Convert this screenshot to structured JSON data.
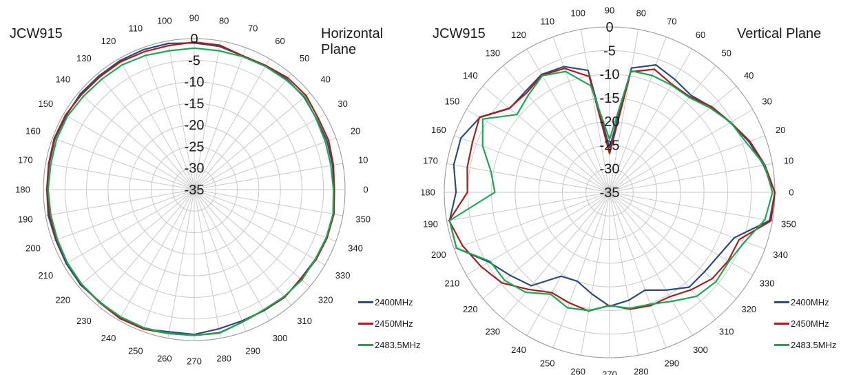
{
  "chart_data": [
    {
      "type": "polar-line",
      "model": "JCW915",
      "title": "Horizontal Plane",
      "radial_range": [
        -35,
        0
      ],
      "radial_ticks": [
        0,
        -5,
        -10,
        -15,
        -20,
        -25,
        -30,
        -35
      ],
      "radial_tick_labels": [
        "0",
        "-5",
        "-10",
        "-15",
        "-20",
        "-25",
        "-30",
        "-35"
      ],
      "angle_step": 10,
      "angle_tick_labels": [
        "0",
        "10",
        "20",
        "30",
        "40",
        "50",
        "60",
        "70",
        "80",
        "90",
        "100",
        "110",
        "120",
        "130",
        "140",
        "150",
        "160",
        "170",
        "180",
        "190",
        "200",
        "210",
        "220",
        "230",
        "240",
        "250",
        "260",
        "270",
        "280",
        "290",
        "300",
        "310",
        "320",
        "330",
        "340",
        "350"
      ],
      "legend_position": "bottom-right",
      "grid": true,
      "series": [
        {
          "name": "2400MHz",
          "color": "#2e4a7d",
          "values": [
            -2.5,
            -2.4,
            -2.2,
            -2.2,
            -1.7,
            -1.6,
            -1.8,
            -2.0,
            -1.3,
            -1.0,
            -0.6,
            -0.5,
            -0.5,
            -0.6,
            -0.5,
            -0.7,
            -0.6,
            -0.8,
            -0.8,
            -0.6,
            -0.8,
            -0.7,
            -0.6,
            -1.0,
            -0.6,
            -0.6,
            -1.5,
            -1.4,
            -2.2,
            -2.6,
            -2.6,
            -2.4,
            -2.8,
            -2.6,
            -2.3,
            -2.1
          ]
        },
        {
          "name": "2450MHz",
          "color": "#a91d1d",
          "values": [
            -2.5,
            -2.2,
            -1.8,
            -1.8,
            -1.1,
            -1.2,
            -1.8,
            -2.0,
            -1.0,
            -0.8,
            -1.1,
            -1.0,
            -0.8,
            -0.9,
            -0.8,
            -0.5,
            -0.4,
            -0.7,
            -0.8,
            -0.9,
            -1.0,
            -1.0,
            -0.8,
            -0.8,
            -0.5,
            -0.6,
            -1.1,
            -1.2,
            -1.3,
            -2.3,
            -2.7,
            -2.4,
            -2.7,
            -2.4,
            -2.2,
            -2.1
          ]
        },
        {
          "name": "2483.5MHz",
          "color": "#1aa855",
          "values": [
            -2.7,
            -2.8,
            -2.6,
            -2.3,
            -1.5,
            -1.8,
            -2.0,
            -2.2,
            -2.3,
            -2.2,
            -2.3,
            -1.9,
            -1.6,
            -1.6,
            -1.4,
            -1.0,
            -1.0,
            -1.2,
            -1.1,
            -1.2,
            -1.2,
            -1.0,
            -0.9,
            -0.9,
            -0.9,
            -0.9,
            -1.1,
            -1.2,
            -1.2,
            -2.3,
            -2.8,
            -2.6,
            -2.4,
            -2.6,
            -2.4,
            -2.3
          ]
        }
      ]
    },
    {
      "type": "polar-line",
      "model": "JCW915",
      "title": "Vertical Plane",
      "radial_range": [
        -35,
        0
      ],
      "radial_ticks": [
        0,
        -5,
        -10,
        -15,
        -20,
        -25,
        -30,
        -35
      ],
      "radial_tick_labels": [
        "0",
        "-5",
        "-10",
        "-15",
        "-20",
        "-25",
        "-30",
        "-35"
      ],
      "angle_step": 10,
      "angle_tick_labels": [
        "0",
        "10",
        "20",
        "30",
        "40",
        "50",
        "60",
        "70",
        "80",
        "90",
        "100",
        "110",
        "120",
        "130",
        "140",
        "150",
        "160",
        "170",
        "180",
        "190",
        "200",
        "210",
        "220",
        "230",
        "240",
        "250",
        "260",
        "270",
        "280",
        "290",
        "300",
        "310",
        "320",
        "330",
        "340",
        "350"
      ],
      "legend_position": "bottom-right",
      "grid": true,
      "series": [
        {
          "name": "2400MHz",
          "color": "#2e4a7d",
          "values": [
            0,
            -1.9,
            -3.6,
            -5.5,
            -6.9,
            -8.2,
            -7.4,
            -6.3,
            -8.3,
            -25.6,
            -8.8,
            -6.7,
            -6.2,
            -7.2,
            -7.4,
            -3.3,
            -1.5,
            -1.5,
            -2.5,
            -0.6,
            -0.5,
            -5.5,
            -7.6,
            -9.2,
            -14.5,
            -15.0,
            -13.2,
            -10.9,
            -11.8,
            -13.0,
            -11.1,
            -8.8,
            -8.8,
            -8.3,
            -6.9,
            -0.6
          ]
        },
        {
          "name": "2450MHz",
          "color": "#a91d1d",
          "values": [
            0,
            -1.6,
            -3.4,
            -5.4,
            -6.8,
            -8.6,
            -8.6,
            -7.3,
            -9.1,
            -26.8,
            -10.1,
            -7.1,
            -6.4,
            -7.6,
            -7.3,
            -3.2,
            -4.1,
            -4.4,
            -4.9,
            -0.5,
            -1.9,
            -3.6,
            -5.2,
            -8.2,
            -10.5,
            -10.1,
            -9.5,
            -11.1,
            -9.9,
            -9.5,
            -9.5,
            -8.1,
            -6.6,
            -6.0,
            -5.8,
            -0.3
          ]
        },
        {
          "name": "2483.5MHz",
          "color": "#1aa855",
          "values": [
            -0.5,
            -1.7,
            -4.2,
            -5.4,
            -7.2,
            -8.8,
            -8.8,
            -8.7,
            -8.9,
            -23.8,
            -12.1,
            -7.8,
            -6.5,
            -8.2,
            -9.4,
            -4.0,
            -6.4,
            -9.5,
            -10.7,
            -0.6,
            -0.5,
            -5.8,
            -6.0,
            -7.4,
            -10.1,
            -9.0,
            -9.6,
            -11.0,
            -10.1,
            -9.8,
            -8.4,
            -6.3,
            -5.6,
            -5.8,
            -4.5,
            -1.6
          ]
        }
      ]
    }
  ]
}
